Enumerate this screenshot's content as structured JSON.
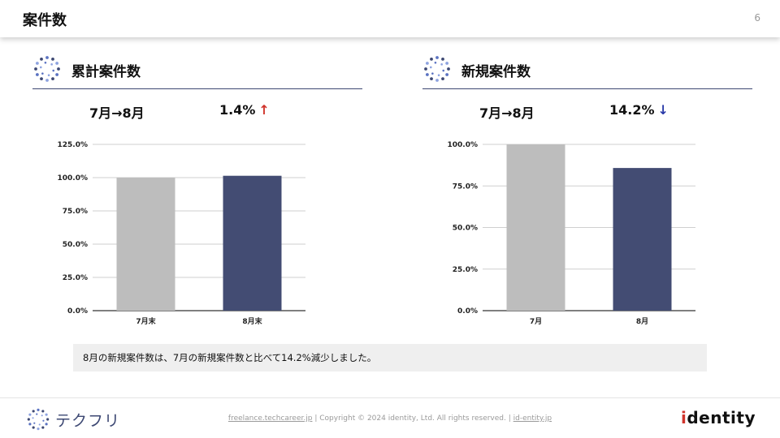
{
  "header": {
    "title": "案件数",
    "page_number": "6"
  },
  "panels": [
    {
      "title": "累計案件数",
      "period": "7月→8月",
      "change_value": "1.4%",
      "change_arrow": "↑",
      "direction": "up",
      "chart_data": {
        "type": "bar",
        "categories": [
          "7月末",
          "8月末"
        ],
        "values": [
          100.0,
          101.4
        ],
        "yticks": [
          "0.0%",
          "25.0%",
          "50.0%",
          "75.0%",
          "100.0%",
          "125.0%"
        ],
        "ylim": [
          0,
          125
        ],
        "colors": [
          "#bdbdbd",
          "#434c73"
        ]
      }
    },
    {
      "title": "新規案件数",
      "period": "7月→8月",
      "change_value": "14.2%",
      "change_arrow": "↓",
      "direction": "down",
      "chart_data": {
        "type": "bar",
        "categories": [
          "7月",
          "8月"
        ],
        "values": [
          100.0,
          85.8
        ],
        "yticks": [
          "0.0%",
          "25.0%",
          "50.0%",
          "75.0%",
          "100.0%"
        ],
        "ylim": [
          0,
          100
        ],
        "colors": [
          "#bdbdbd",
          "#434c73"
        ]
      }
    }
  ],
  "note": "8月の新規案件数は、7月の新規案件数と比べて14.2%減少しました。",
  "footer": {
    "brand": "テクフリ",
    "link1": "freelance.techcareer.jp",
    "copyright": "Copyright © 2024 identity, Ltd. All rights reserved.",
    "link2": "id-entity.jp",
    "separator": "|",
    "company_logo_text": "identity"
  }
}
